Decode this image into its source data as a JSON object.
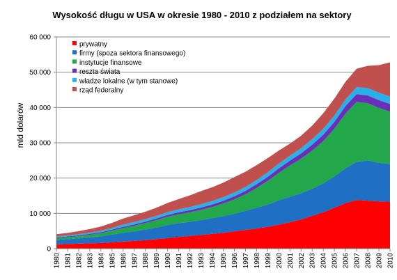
{
  "chart_data": {
    "type": "area",
    "stacked": true,
    "title": "Wysokość długu w USA w okresie 1980 - 2010  z podziałem na sektory",
    "xlabel": "",
    "ylabel": "mld dolarów",
    "ylim": [
      0,
      60000
    ],
    "yticks": [
      "0",
      "10 000",
      "20 000",
      "30 000",
      "40 000",
      "50 000",
      "60 000"
    ],
    "grid": true,
    "legend_position": "top-left",
    "x": [
      "1980",
      "1981",
      "1982",
      "1983",
      "1984",
      "1985",
      "1986",
      "1987",
      "1988",
      "1989",
      "1990",
      "1991",
      "1992",
      "1993",
      "1994",
      "1995",
      "1996",
      "1997",
      "1998",
      "1999",
      "2000",
      "2001",
      "2002",
      "2003",
      "2004",
      "2005",
      "2006",
      "2007",
      "2008",
      "2009",
      "2010"
    ],
    "series": [
      {
        "name": "prywatny",
        "color": "#ff0000",
        "values": [
          1200,
          1300,
          1400,
          1500,
          1600,
          1800,
          2000,
          2200,
          2400,
          2700,
          3000,
          3300,
          3600,
          3900,
          4200,
          4500,
          4900,
          5300,
          5700,
          6200,
          6800,
          7500,
          8300,
          9300,
          10300,
          11600,
          12900,
          13800,
          13600,
          13400,
          13300
        ]
      },
      {
        "name": "firmy (spoza sektora finansowego)",
        "color": "#1f6fc5",
        "values": [
          1300,
          1400,
          1500,
          1700,
          1900,
          2200,
          2500,
          2700,
          3000,
          3300,
          3700,
          3900,
          4000,
          4200,
          4400,
          4700,
          5000,
          5400,
          5900,
          6300,
          6900,
          7200,
          7400,
          7700,
          8200,
          8900,
          9900,
          10800,
          11400,
          10900,
          10700
        ]
      },
      {
        "name": "instytucje finansowe",
        "color": "#22a84a",
        "values": [
          500,
          550,
          650,
          750,
          900,
          1100,
          1350,
          1600,
          1850,
          2100,
          2350,
          2550,
          2700,
          2900,
          3200,
          3600,
          4100,
          4700,
          5600,
          6700,
          7800,
          8900,
          9800,
          10800,
          12000,
          13500,
          15500,
          17000,
          16200,
          15600,
          14800
        ]
      },
      {
        "name": "reszta świata",
        "color": "#6a2fb8",
        "values": [
          200,
          200,
          220,
          250,
          270,
          300,
          330,
          370,
          400,
          450,
          500,
          550,
          600,
          650,
          700,
          750,
          850,
          950,
          1050,
          1150,
          1250,
          1350,
          1500,
          1650,
          1800,
          1950,
          2100,
          2200,
          2200,
          2200,
          2200
        ]
      },
      {
        "name": "władze lokalne (w tym stanowe)",
        "color": "#2ab0e8",
        "values": [
          300,
          310,
          330,
          360,
          400,
          500,
          650,
          700,
          720,
          760,
          800,
          850,
          900,
          950,
          1000,
          1050,
          1100,
          1150,
          1200,
          1300,
          1350,
          1400,
          1500,
          1600,
          1700,
          1800,
          1900,
          2000,
          2100,
          2100,
          2100
        ]
      },
      {
        "name": "rząd federalny",
        "color": "#c0504d",
        "values": [
          600,
          700,
          850,
          1000,
          1200,
          1400,
          1700,
          1900,
          2100,
          2300,
          2600,
          2900,
          3300,
          3700,
          3900,
          4100,
          4300,
          4300,
          4200,
          4000,
          3700,
          3400,
          3500,
          3800,
          4400,
          4800,
          5000,
          5200,
          6300,
          7800,
          9700
        ]
      }
    ]
  }
}
